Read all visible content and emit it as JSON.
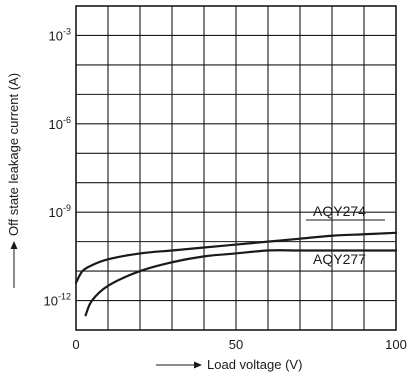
{
  "chart_data": {
    "type": "line",
    "xlabel": "Load voltage (V)",
    "ylabel": "Off state leakage current (A)",
    "xlim": [
      0,
      100
    ],
    "ylim_log10": [
      -13,
      -2
    ],
    "y_scale": "log",
    "grid": true,
    "x_ticks": [
      {
        "value": 0,
        "label": "0"
      },
      {
        "value": 50,
        "label": "50"
      },
      {
        "value": 100,
        "label": "100"
      }
    ],
    "y_ticks": [
      {
        "exp": -3,
        "base": "10",
        "sup": "-3"
      },
      {
        "exp": -6,
        "base": "10",
        "sup": "-6"
      },
      {
        "exp": -9,
        "base": "10",
        "sup": "-9"
      },
      {
        "exp": -12,
        "base": "10",
        "sup": "-12"
      }
    ],
    "series": [
      {
        "name": "AQY274",
        "x": [
          0,
          2,
          5,
          10,
          20,
          30,
          40,
          50,
          60,
          70,
          80,
          90,
          100
        ],
        "y_log10": [
          -11.4,
          -11.0,
          -10.8,
          -10.6,
          -10.4,
          -10.3,
          -10.2,
          -10.1,
          -10.0,
          -9.9,
          -9.8,
          -9.75,
          -9.7
        ],
        "y": [
          3.98e-12,
          1e-11,
          1.58e-11,
          2.51e-11,
          3.98e-11,
          5.01e-11,
          6.31e-11,
          7.94e-11,
          1e-10,
          1.26e-10,
          1.58e-10,
          1.78e-10,
          2e-10
        ]
      },
      {
        "name": "AQY277",
        "x": [
          3,
          5,
          10,
          20,
          30,
          40,
          50,
          60,
          70,
          80,
          90,
          100
        ],
        "y_log10": [
          -12.5,
          -12.0,
          -11.5,
          -11.0,
          -10.7,
          -10.5,
          -10.4,
          -10.3,
          -10.3,
          -10.3,
          -10.3,
          -10.3
        ],
        "y": [
          3.16e-13,
          1e-12,
          3.16e-12,
          1e-11,
          2e-11,
          3.16e-11,
          3.98e-11,
          5.01e-11,
          5.01e-11,
          5.01e-11,
          5.01e-11,
          5.01e-11
        ]
      }
    ]
  }
}
